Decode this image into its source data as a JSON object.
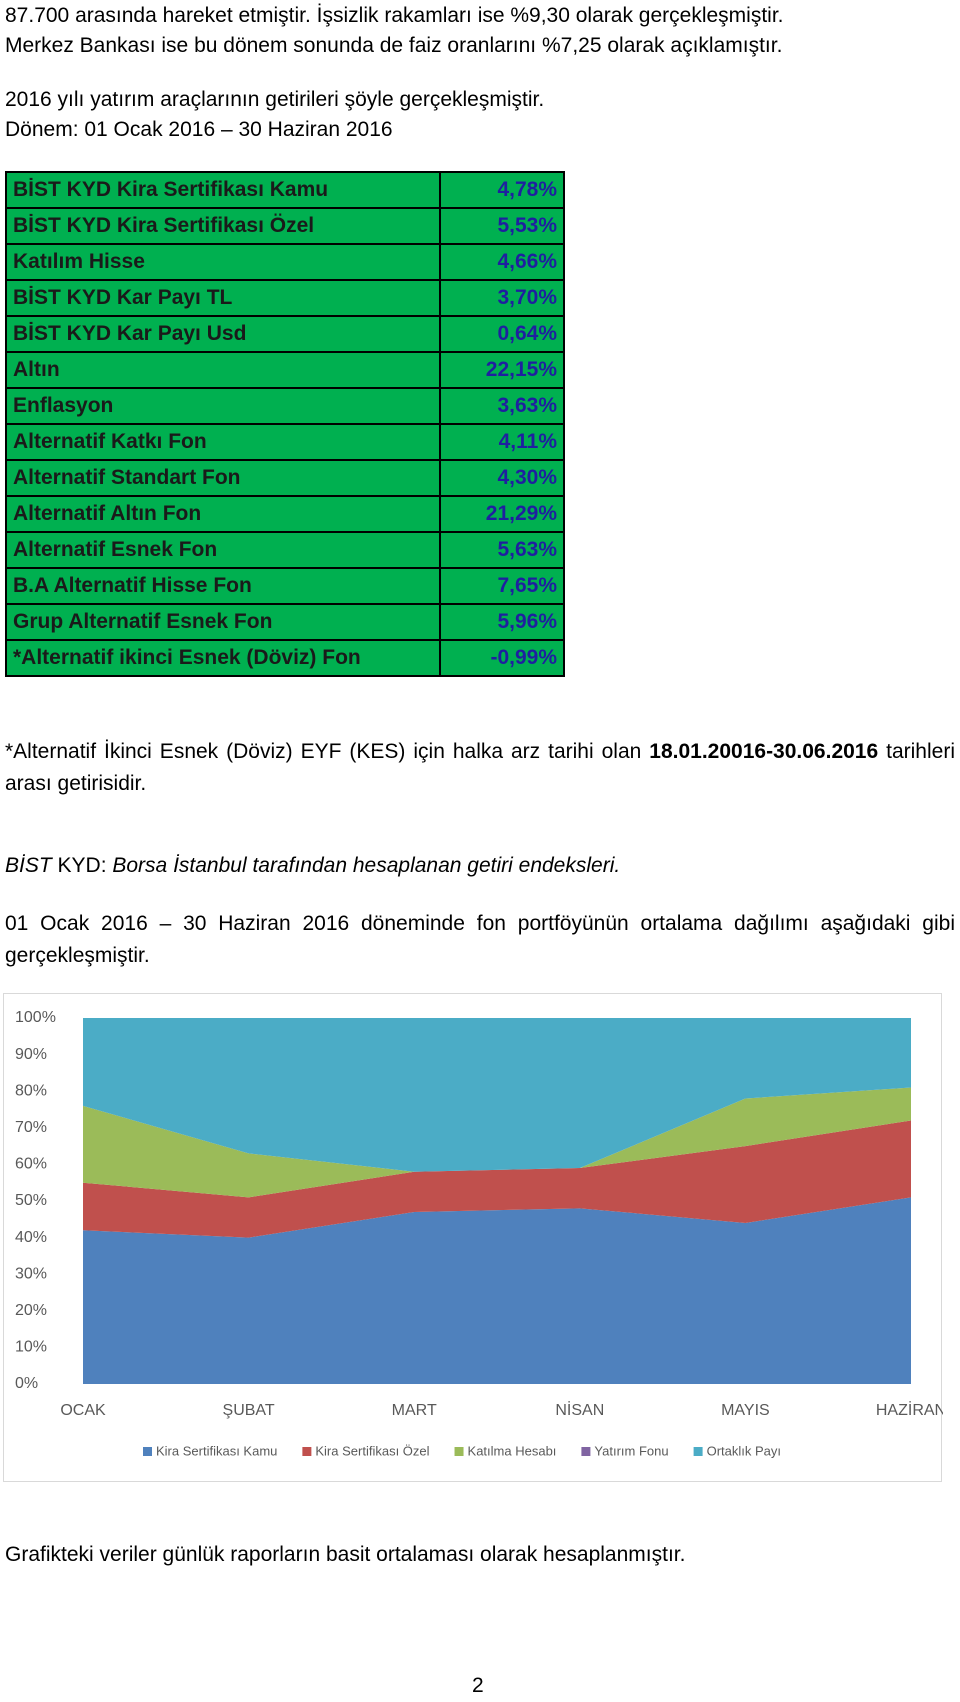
{
  "paragraphs": [
    "87.700 arasında hareket etmiştir. İşsizlik rakamları ise %9,30 olarak gerçekleşmiştir.",
    "Merkez Bankası ise bu dönem sonunda de faiz oranlarını %7,25 olarak açıklamıştır.",
    "2016 yılı yatırım araçlarının getirileri şöyle gerçekleşmiştir.",
    "Dönem: 01 Ocak 2016 – 30 Haziran 2016"
  ],
  "table": {
    "rows": [
      [
        "BİST KYD Kira Sertifikası Kamu",
        "4,78%"
      ],
      [
        "BİST KYD Kira Sertifikası Özel",
        "5,53%"
      ],
      [
        "Katılım Hisse",
        "4,66%"
      ],
      [
        "BİST KYD Kar Payı TL",
        "3,70%"
      ],
      [
        "BİST KYD Kar Payı Usd",
        "0,64%"
      ],
      [
        "Altın",
        "22,15%"
      ],
      [
        "Enflasyon",
        "3,63%"
      ],
      [
        "Alternatif Katkı Fon",
        "4,11%"
      ],
      [
        "Alternatif Standart Fon",
        "4,30%"
      ],
      [
        "Alternatif Altın Fon",
        "21,29%"
      ],
      [
        "Alternatif Esnek Fon",
        "5,63%"
      ],
      [
        "B.A Alternatif Hisse Fon",
        "7,65%"
      ],
      [
        "Grup Alternatif Esnek Fon",
        "5,96%"
      ],
      [
        "*Alternatif ikinci Esnek (Döviz) Fon",
        "-0,99%"
      ]
    ]
  },
  "note": [
    "*Alternatif İkinci Esnek (Döviz) EYF (KES) için halka arz tarihi olan ",
    "18.01.20016-30.06.2016",
    " tarihleri arası getirisidir."
  ],
  "definition": [
    "BİST",
    " KYD: ",
    "Borsa İstanbul  tarafından hesaplanan getiri endeksleri."
  ],
  "distribution_text": "01 Ocak 2016 – 30 Haziran 2016 döneminde fon portföyünün ortalama dağılımı aşağıdaki gibi gerçekleşmiştir.",
  "chart_data": {
    "type": "stacked_area",
    "categories": [
      "OCAK",
      "ŞUBAT",
      "MART",
      "NİSAN",
      "MAYIS",
      "HAZİRAN"
    ],
    "series": [
      {
        "name": "Kira Sertifikası Kamu",
        "color": "#4f81bd",
        "values": [
          42,
          40,
          47,
          48,
          44,
          51
        ]
      },
      {
        "name": "Kira Sertifikası Özel",
        "color": "#c0504d",
        "values": [
          13,
          11,
          11,
          11,
          21,
          21
        ]
      },
      {
        "name": "Katılma Hesabı",
        "color": "#9bbb59",
        "values": [
          21,
          12,
          0,
          0,
          13,
          9
        ]
      },
      {
        "name": "Yatırım Fonu",
        "color": "#8064a2",
        "values": [
          0,
          0,
          0,
          0,
          0,
          0
        ]
      },
      {
        "name": "Ortaklık Payı",
        "color": "#4bacc6",
        "values": [
          24,
          37,
          42,
          41,
          22,
          19
        ]
      }
    ],
    "ylim": [
      0,
      100
    ],
    "yticks": [
      {
        "value": 0,
        "label": "0%"
      },
      {
        "value": 10,
        "label": "10%"
      },
      {
        "value": 20,
        "label": "20%"
      },
      {
        "value": 30,
        "label": "30%"
      },
      {
        "value": 40,
        "label": "40%"
      },
      {
        "value": 50,
        "label": "50%"
      },
      {
        "value": 60,
        "label": "60%"
      },
      {
        "value": 70,
        "label": "70%"
      },
      {
        "value": 80,
        "label": "80%"
      },
      {
        "value": 90,
        "label": "90%"
      },
      {
        "value": 100,
        "label": "100%"
      }
    ],
    "legend": "bottom"
  },
  "footer_text": "Grafikteki veriler günlük raporların basit ortalaması olarak hesaplanmıştır.",
  "page_number": "2"
}
